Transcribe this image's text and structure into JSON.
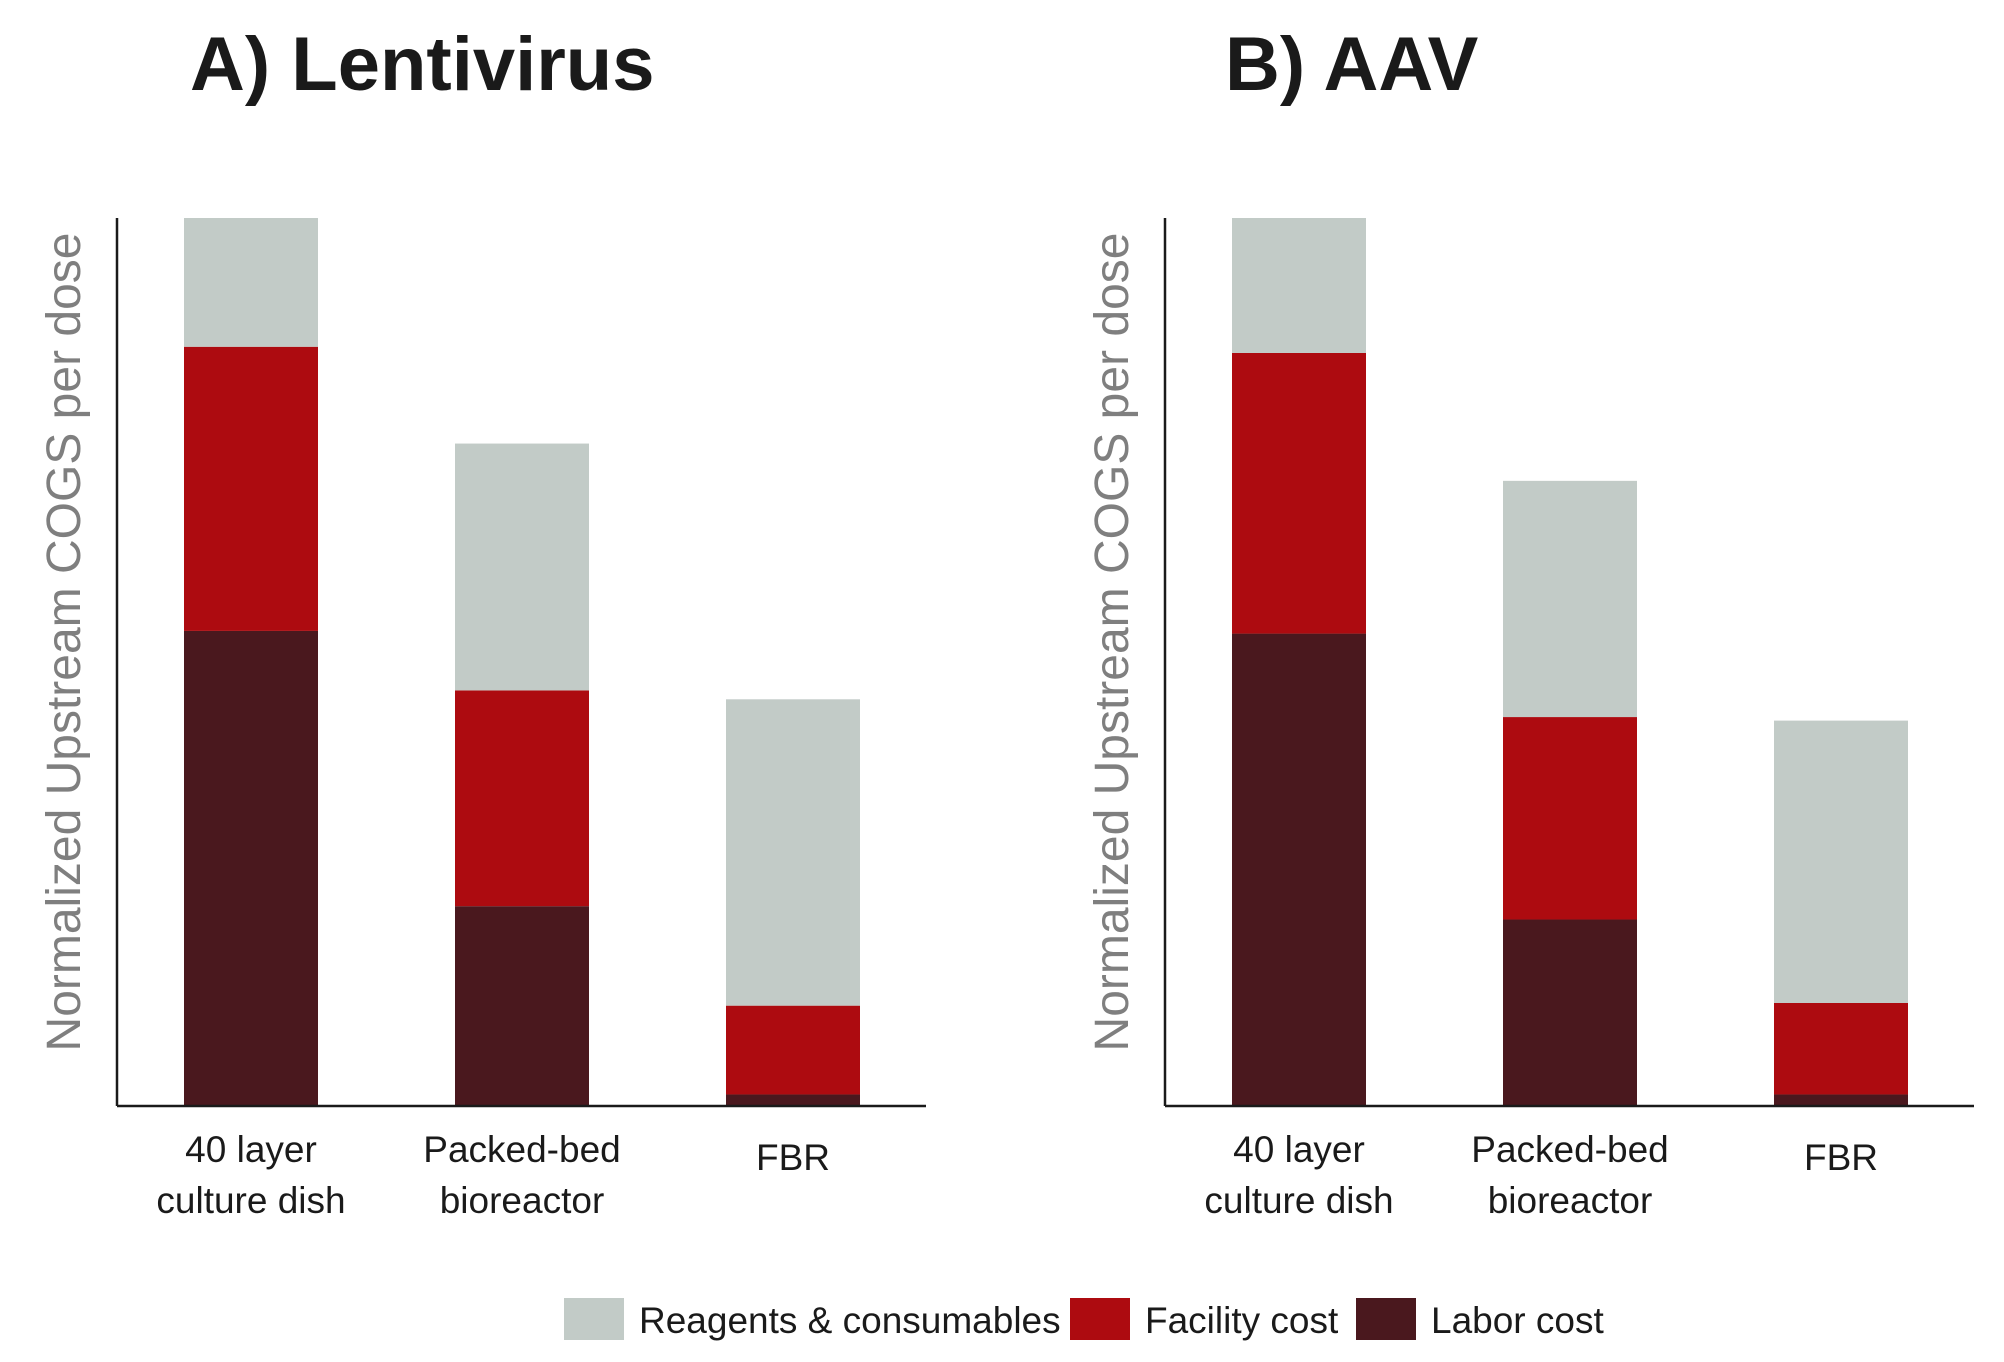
{
  "chart_data": [
    {
      "type": "bar",
      "stacked": true,
      "title": "A) Lentivirus",
      "ylabel": "Normalized Upstream COGS per dose",
      "categories": [
        [
          "40 layer",
          "culture dish"
        ],
        [
          "Packed-bed",
          "bioreactor"
        ],
        [
          "FBR"
        ]
      ],
      "series": [
        {
          "name": "Labor cost",
          "color": "#4a181e",
          "values": [
            53.5,
            22.5,
            1.3
          ]
        },
        {
          "name": "Facility cost",
          "color": "#ad0b10",
          "values": [
            32.0,
            24.3,
            10.0
          ]
        },
        {
          "name": "Reagents & consumables",
          "color": "#c2cbc7",
          "values": [
            14.5,
            27.8,
            34.5
          ]
        }
      ],
      "ylim": [
        0,
        100
      ],
      "grid": false
    },
    {
      "type": "bar",
      "stacked": true,
      "title": "B) AAV",
      "ylabel": "Normalized Upstream COGS per dose",
      "categories": [
        [
          "40 layer",
          "culture dish"
        ],
        [
          "Packed-bed",
          "bioreactor"
        ],
        [
          "FBR"
        ]
      ],
      "series": [
        {
          "name": "Labor cost",
          "color": "#4a181e",
          "values": [
            53.2,
            21.0,
            1.3
          ]
        },
        {
          "name": "Facility cost",
          "color": "#ad0b10",
          "values": [
            31.6,
            22.8,
            10.3
          ]
        },
        {
          "name": "Reagents & consumables",
          "color": "#c2cbc7",
          "values": [
            15.2,
            26.6,
            31.8
          ]
        }
      ],
      "ylim": [
        0,
        100
      ],
      "grid": false
    }
  ],
  "legend": {
    "placement": "bottom-center",
    "items": [
      {
        "label": "Reagents & consumables",
        "color": "#c2cbc7"
      },
      {
        "label": "Facility cost",
        "color": "#ad0b10"
      },
      {
        "label": "Labor cost",
        "color": "#4a181e"
      }
    ]
  }
}
